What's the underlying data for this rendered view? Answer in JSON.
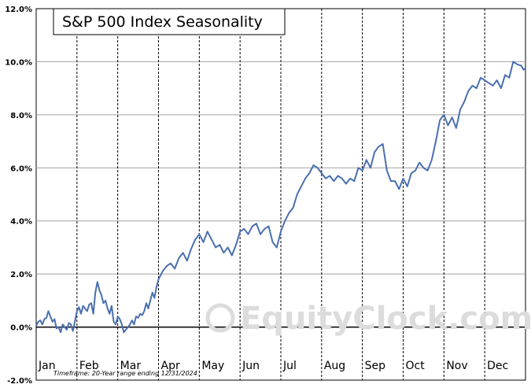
{
  "chart_data": {
    "type": "line",
    "title": "S&P 500 Index Seasonality",
    "footnote": "Timeframe: 20-Year range ending 12/31/2024",
    "watermark": "EquityClock.com",
    "ylim": [
      -2,
      12
    ],
    "yticks": [
      -2,
      0,
      2,
      4,
      6,
      8,
      10,
      12
    ],
    "ytick_labels": [
      "-2.0%",
      "0.0%",
      "2.0%",
      "4.0%",
      "6.0%",
      "8.0%",
      "10.0%",
      "12.0%"
    ],
    "xlim": [
      0,
      12
    ],
    "months": [
      "Jan",
      "Feb",
      "Mar",
      "Apr",
      "May",
      "Jun",
      "Jul",
      "Aug",
      "Sep",
      "Oct",
      "Nov",
      "Dec"
    ],
    "grid": true,
    "line_color": "#4a6fb0",
    "series": [
      {
        "x": [
          0,
          0.05,
          0.1,
          0.15,
          0.2,
          0.25,
          0.3,
          0.35,
          0.4,
          0.45,
          0.5,
          0.55,
          0.6,
          0.65,
          0.7,
          0.75,
          0.8,
          0.85,
          0.9,
          0.95,
          1.0,
          1.05,
          1.1,
          1.15,
          1.2,
          1.25,
          1.3,
          1.35,
          1.4,
          1.45,
          1.5,
          1.55,
          1.6,
          1.65,
          1.7,
          1.75,
          1.8,
          1.85,
          1.9,
          1.95,
          2.0,
          2.05,
          2.1,
          2.15,
          2.2,
          2.25,
          2.3,
          2.35,
          2.4,
          2.45,
          2.5,
          2.55,
          2.6,
          2.65,
          2.7,
          2.75,
          2.8,
          2.85,
          2.9,
          2.95,
          3.0,
          3.1,
          3.2,
          3.3,
          3.4,
          3.5,
          3.6,
          3.7,
          3.8,
          3.9,
          4.0,
          4.1,
          4.2,
          4.3,
          4.4,
          4.5,
          4.6,
          4.7,
          4.8,
          4.9,
          5.0,
          5.1,
          5.2,
          5.3,
          5.4,
          5.5,
          5.6,
          5.7,
          5.8,
          5.9,
          6.0,
          6.1,
          6.2,
          6.3,
          6.4,
          6.5,
          6.6,
          6.7,
          6.8,
          6.9,
          7.0,
          7.1,
          7.2,
          7.3,
          7.4,
          7.5,
          7.6,
          7.7,
          7.8,
          7.9,
          8.0,
          8.1,
          8.2,
          8.3,
          8.4,
          8.5,
          8.6,
          8.7,
          8.8,
          8.9,
          9.0,
          9.1,
          9.2,
          9.3,
          9.4,
          9.5,
          9.6,
          9.7,
          9.8,
          9.9,
          10.0,
          10.1,
          10.2,
          10.3,
          10.4,
          10.5,
          10.6,
          10.7,
          10.8,
          10.9,
          11.0,
          11.1,
          11.2,
          11.3,
          11.4,
          11.5,
          11.6,
          11.7,
          11.8,
          11.9,
          11.95,
          12.0
        ],
        "y": [
          0.05,
          0.2,
          0.25,
          0.1,
          0.3,
          0.35,
          0.6,
          0.4,
          0.2,
          0.3,
          -0.05,
          0.0,
          -0.2,
          0.1,
          0.0,
          -0.1,
          0.15,
          0.1,
          -0.15,
          0.2,
          0.6,
          0.75,
          0.5,
          0.8,
          0.7,
          0.6,
          0.85,
          0.9,
          0.5,
          1.3,
          1.7,
          1.4,
          1.2,
          0.9,
          1.0,
          0.7,
          0.5,
          0.8,
          0.2,
          0.1,
          0.4,
          0.3,
          0.1,
          -0.2,
          -0.1,
          0.0,
          0.1,
          0.25,
          0.1,
          0.4,
          0.35,
          0.5,
          0.45,
          0.6,
          0.9,
          0.7,
          1.0,
          1.3,
          1.1,
          1.5,
          1.8,
          2.1,
          2.3,
          2.4,
          2.2,
          2.6,
          2.8,
          2.5,
          2.95,
          3.3,
          3.5,
          3.2,
          3.6,
          3.3,
          3.0,
          3.1,
          2.8,
          3.0,
          2.7,
          3.1,
          3.6,
          3.7,
          3.5,
          3.8,
          3.9,
          3.5,
          3.7,
          3.8,
          3.2,
          3.0,
          3.6,
          4.0,
          4.3,
          4.5,
          5.0,
          5.3,
          5.6,
          5.8,
          6.1,
          6.0,
          5.8,
          5.6,
          5.7,
          5.5,
          5.7,
          5.6,
          5.4,
          5.6,
          5.5,
          6.0,
          5.9,
          6.3,
          6.0,
          6.6,
          6.8,
          6.9,
          5.9,
          5.5,
          5.5,
          5.2,
          5.6,
          5.3,
          5.8,
          5.9,
          6.2,
          6.0,
          5.9,
          6.3,
          7.0,
          7.8,
          8.0,
          7.6,
          7.9,
          7.5,
          8.2,
          8.5,
          8.9,
          9.1,
          9.0,
          9.4,
          9.3,
          9.2,
          9.1,
          9.3,
          9.0,
          9.5,
          9.4,
          10.0,
          9.9,
          9.85,
          9.7,
          9.75
        ]
      }
    ]
  }
}
